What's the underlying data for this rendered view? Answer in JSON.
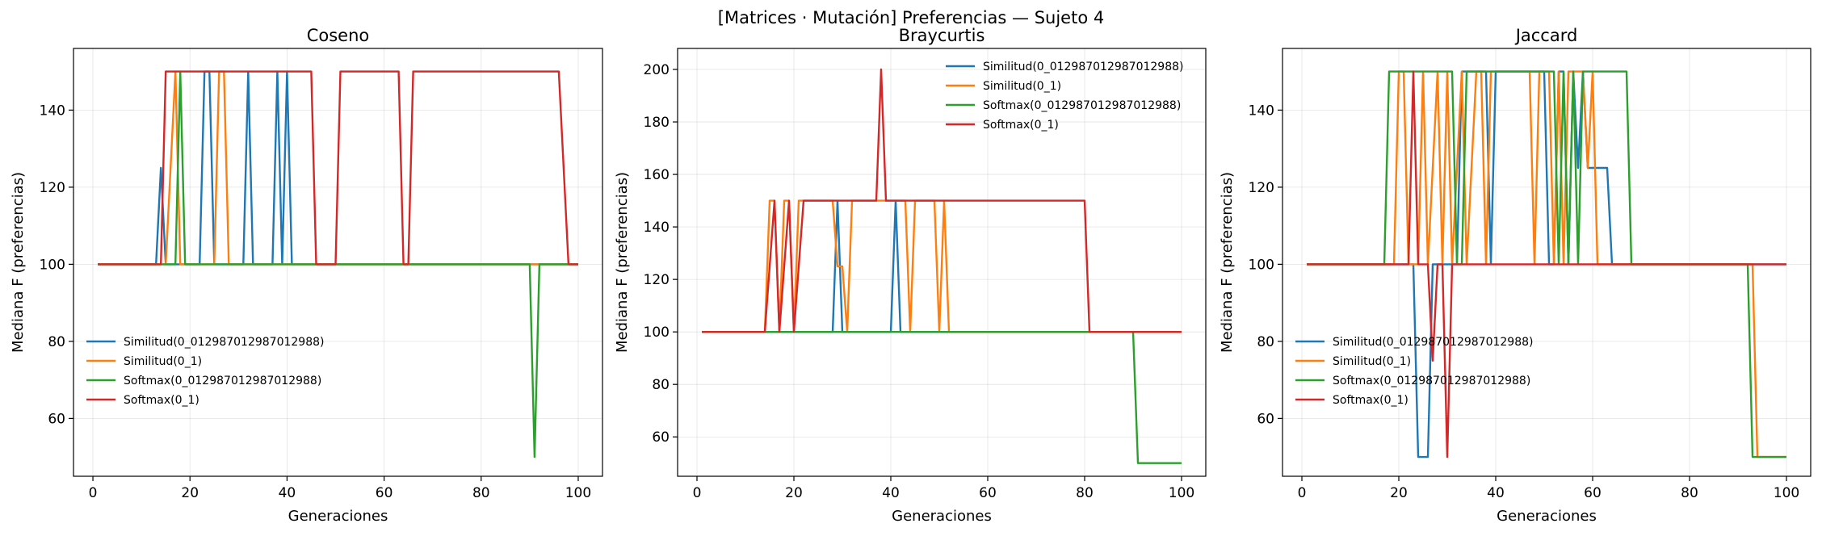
{
  "suptitle": "[Matrices · Mutación] Preferencias — Sujeto 4",
  "colors": [
    "#1f77b4",
    "#ff7f0e",
    "#2ca02c",
    "#d62728"
  ],
  "chart_data": [
    {
      "type": "line",
      "title": "Coseno",
      "xlabel": "Generaciones",
      "ylabel": "Mediana F (preferencias)",
      "xlim": [
        -4,
        105
      ],
      "ylim": [
        45,
        156
      ],
      "xticks": [
        0,
        20,
        40,
        60,
        80,
        100
      ],
      "yticks": [
        60,
        80,
        100,
        120,
        140
      ],
      "grid": true,
      "legend_position": "lower-left",
      "series": [
        {
          "name": "Similitud(0_012987012987012988)",
          "points": [
            [
              1,
              100
            ],
            [
              13,
              100
            ],
            [
              14,
              125
            ],
            [
              15,
              100
            ],
            [
              22,
              100
            ],
            [
              23,
              150
            ],
            [
              24,
              150
            ],
            [
              25,
              100
            ],
            [
              31,
              100
            ],
            [
              32,
              150
            ],
            [
              33,
              100
            ],
            [
              37,
              100
            ],
            [
              38,
              150
            ],
            [
              39,
              100
            ],
            [
              40,
              150
            ],
            [
              41,
              100
            ],
            [
              100,
              100
            ]
          ]
        },
        {
          "name": "Similitud(0_1)",
          "points": [
            [
              1,
              100
            ],
            [
              15,
              100
            ],
            [
              16,
              125
            ],
            [
              17,
              150
            ],
            [
              18,
              100
            ],
            [
              25,
              100
            ],
            [
              26,
              150
            ],
            [
              27,
              150
            ],
            [
              28,
              100
            ],
            [
              100,
              100
            ]
          ]
        },
        {
          "name": "Softmax(0_012987012987012988)",
          "points": [
            [
              1,
              100
            ],
            [
              17,
              100
            ],
            [
              18,
              150
            ],
            [
              19,
              100
            ],
            [
              90,
              100
            ],
            [
              91,
              50
            ],
            [
              92,
              100
            ],
            [
              100,
              100
            ]
          ]
        },
        {
          "name": "Softmax(0_1)",
          "points": [
            [
              1,
              100
            ],
            [
              14,
              100
            ],
            [
              15,
              150
            ],
            [
              45,
              150
            ],
            [
              46,
              100
            ],
            [
              50,
              100
            ],
            [
              51,
              150
            ],
            [
              63,
              150
            ],
            [
              64,
              100
            ],
            [
              65,
              100
            ],
            [
              66,
              150
            ],
            [
              96,
              150
            ],
            [
              98,
              100
            ],
            [
              100,
              100
            ]
          ]
        }
      ]
    },
    {
      "type": "line",
      "title": "Braycurtis",
      "xlabel": "Generaciones",
      "ylabel": "Mediana F (preferencias)",
      "xlim": [
        -4,
        105
      ],
      "ylim": [
        45,
        208
      ],
      "xticks": [
        0,
        20,
        40,
        60,
        80,
        100
      ],
      "yticks": [
        60,
        80,
        100,
        120,
        140,
        160,
        180,
        200
      ],
      "grid": true,
      "legend_position": "upper-right",
      "series": [
        {
          "name": "Similitud(0_012987012987012988)",
          "points": [
            [
              1,
              100
            ],
            [
              28,
              100
            ],
            [
              29,
              150
            ],
            [
              30,
              100
            ],
            [
              40,
              100
            ],
            [
              41,
              150
            ],
            [
              42,
              100
            ],
            [
              100,
              100
            ]
          ]
        },
        {
          "name": "Similitud(0_1)",
          "points": [
            [
              1,
              100
            ],
            [
              14,
              100
            ],
            [
              15,
              150
            ],
            [
              16,
              150
            ],
            [
              17,
              100
            ],
            [
              18,
              150
            ],
            [
              19,
              150
            ],
            [
              20,
              100
            ],
            [
              21,
              150
            ],
            [
              28,
              150
            ],
            [
              29,
              125
            ],
            [
              30,
              125
            ],
            [
              31,
              100
            ],
            [
              32,
              150
            ],
            [
              43,
              150
            ],
            [
              44,
              100
            ],
            [
              45,
              150
            ],
            [
              49,
              150
            ],
            [
              50,
              100
            ],
            [
              51,
              150
            ],
            [
              52,
              100
            ],
            [
              100,
              100
            ]
          ]
        },
        {
          "name": "Softmax(0_012987012987012988)",
          "points": [
            [
              1,
              100
            ],
            [
              90,
              100
            ],
            [
              91,
              50
            ],
            [
              100,
              50
            ]
          ]
        },
        {
          "name": "Softmax(0_1)",
          "points": [
            [
              1,
              100
            ],
            [
              14,
              100
            ],
            [
              16,
              150
            ],
            [
              17,
              100
            ],
            [
              19,
              150
            ],
            [
              20,
              100
            ],
            [
              22,
              150
            ],
            [
              37,
              150
            ],
            [
              38,
              200
            ],
            [
              39,
              150
            ],
            [
              80,
              150
            ],
            [
              81,
              100
            ],
            [
              100,
              100
            ]
          ]
        }
      ]
    },
    {
      "type": "line",
      "title": "Jaccard",
      "xlabel": "Generaciones",
      "ylabel": "Mediana F (preferencias)",
      "xlim": [
        -4,
        105
      ],
      "ylim": [
        45,
        156
      ],
      "xticks": [
        0,
        20,
        40,
        60,
        80,
        100
      ],
      "yticks": [
        60,
        80,
        100,
        120,
        140
      ],
      "grid": true,
      "legend_position": "lower-left",
      "series": [
        {
          "name": "Similitud(0_012987012987012988)",
          "points": [
            [
              1,
              100
            ],
            [
              23,
              100
            ],
            [
              24,
              50
            ],
            [
              26,
              50
            ],
            [
              27,
              100
            ],
            [
              32,
              100
            ],
            [
              33,
              150
            ],
            [
              38,
              150
            ],
            [
              39,
              100
            ],
            [
              40,
              150
            ],
            [
              50,
              150
            ],
            [
              51,
              100
            ],
            [
              52,
              100
            ],
            [
              53,
              150
            ],
            [
              54,
              150
            ],
            [
              55,
              100
            ],
            [
              56,
              150
            ],
            [
              57,
              125
            ],
            [
              58,
              150
            ],
            [
              59,
              125
            ],
            [
              63,
              125
            ],
            [
              64,
              100
            ],
            [
              100,
              100
            ]
          ]
        },
        {
          "name": "Similitud(0_1)",
          "points": [
            [
              1,
              100
            ],
            [
              19,
              100
            ],
            [
              20,
              150
            ],
            [
              21,
              150
            ],
            [
              22,
              100
            ],
            [
              24,
              100
            ],
            [
              25,
              150
            ],
            [
              26,
              100
            ],
            [
              28,
              150
            ],
            [
              29,
              100
            ],
            [
              30,
              150
            ],
            [
              31,
              100
            ],
            [
              33,
              150
            ],
            [
              34,
              100
            ],
            [
              36,
              150
            ],
            [
              37,
              150
            ],
            [
              38,
              100
            ],
            [
              39,
              150
            ],
            [
              47,
              150
            ],
            [
              48,
              100
            ],
            [
              49,
              150
            ],
            [
              51,
              150
            ],
            [
              52,
              100
            ],
            [
              53,
              150
            ],
            [
              54,
              100
            ],
            [
              55,
              150
            ],
            [
              58,
              150
            ],
            [
              59,
              125
            ],
            [
              60,
              150
            ],
            [
              61,
              100
            ],
            [
              93,
              100
            ],
            [
              94,
              50
            ],
            [
              100,
              50
            ]
          ]
        },
        {
          "name": "Softmax(0_012987012987012988)",
          "points": [
            [
              1,
              100
            ],
            [
              17,
              100
            ],
            [
              18,
              150
            ],
            [
              31,
              150
            ],
            [
              32,
              100
            ],
            [
              33,
              100
            ],
            [
              34,
              150
            ],
            [
              52,
              150
            ],
            [
              53,
              100
            ],
            [
              54,
              150
            ],
            [
              55,
              100
            ],
            [
              56,
              150
            ],
            [
              57,
              100
            ],
            [
              58,
              150
            ],
            [
              67,
              150
            ],
            [
              68,
              100
            ],
            [
              92,
              100
            ],
            [
              93,
              50
            ],
            [
              100,
              50
            ]
          ]
        },
        {
          "name": "Softmax(0_1)",
          "points": [
            [
              1,
              100
            ],
            [
              22,
              100
            ],
            [
              23,
              150
            ],
            [
              24,
              100
            ],
            [
              26,
              100
            ],
            [
              27,
              75
            ],
            [
              28,
              100
            ],
            [
              29,
              100
            ],
            [
              30,
              50
            ],
            [
              31,
              100
            ],
            [
              100,
              100
            ]
          ]
        }
      ]
    }
  ]
}
